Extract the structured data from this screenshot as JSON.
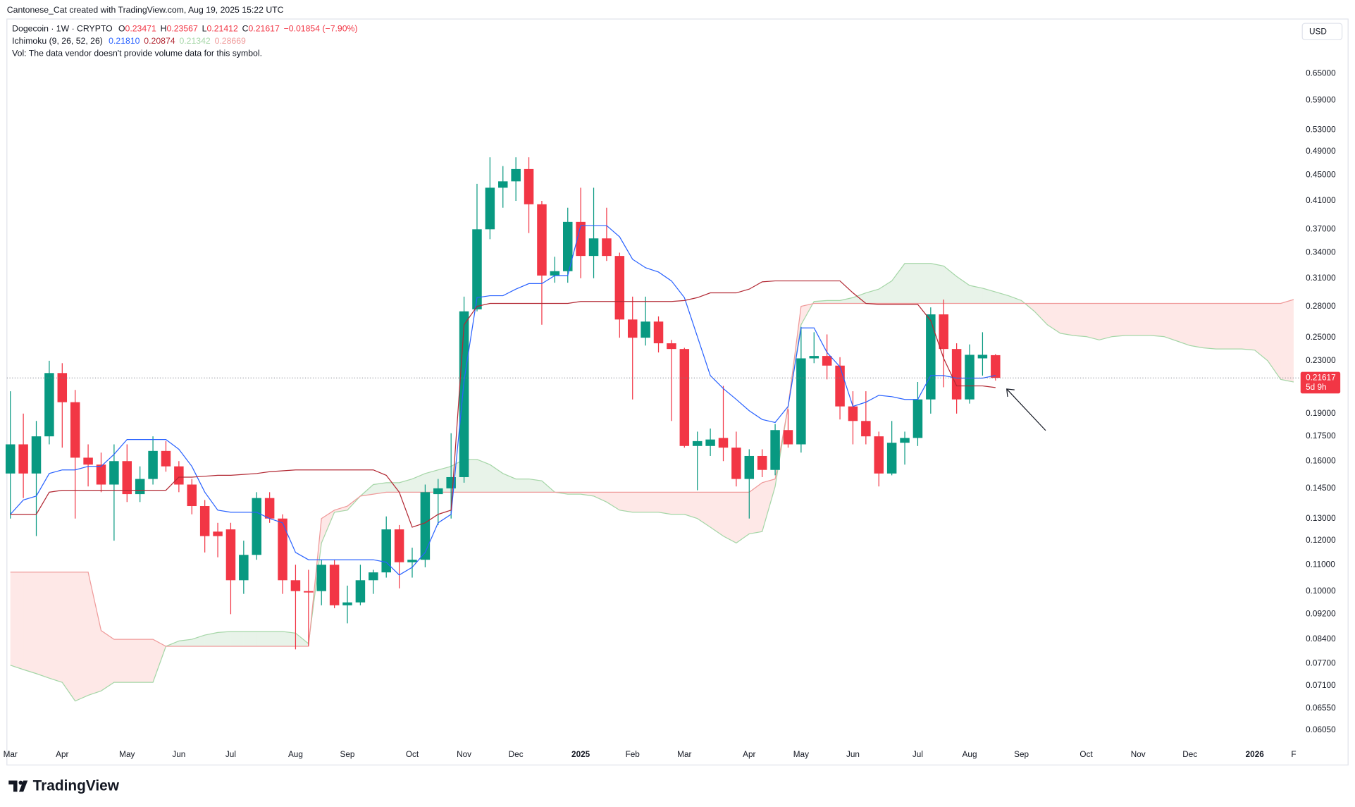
{
  "header": {
    "attribution": "Cantonese_Cat created with TradingView.com, Aug 19, 2025 15:22 UTC",
    "symbol": "Dogecoin · 1W · CRYPTO",
    "ohlc_labels": [
      "O",
      "H",
      "L",
      "C"
    ],
    "change": "−0.01854 (−7.90%)",
    "indicator": {
      "label": "Ichimoku (9, 26, 52, 26)",
      "values": [
        "0.21810",
        "0.20874",
        "0.21342",
        "0.28669"
      ]
    },
    "volume_note": "Vol: The data vendor doesn't provide volume data for this symbol."
  },
  "logo": "TradingView",
  "chart_data": {
    "type": "candlestick",
    "currency": "USD",
    "countdown": "5d 9h",
    "log_scale": true,
    "grid": false,
    "up_color": "#089981",
    "down_color": "#f23645",
    "categories": [
      "Mar",
      null,
      null,
      null,
      "Apr",
      null,
      null,
      null,
      null,
      "May",
      null,
      null,
      null,
      "Jun",
      null,
      null,
      null,
      "Jul",
      null,
      null,
      null,
      null,
      "Aug",
      null,
      null,
      null,
      "Sep",
      null,
      null,
      null,
      null,
      "Oct",
      null,
      null,
      null,
      "Nov",
      null,
      null,
      null,
      "Dec",
      null,
      null,
      null,
      null,
      "2025",
      null,
      null,
      null,
      "Feb",
      null,
      null,
      null,
      "Mar",
      null,
      null,
      null,
      null,
      "Apr",
      null,
      null,
      null,
      "May",
      null,
      null,
      null,
      "Jun",
      null,
      null,
      null,
      null,
      "Jul",
      null,
      null,
      null,
      "Aug",
      null,
      null,
      null,
      "Sep",
      null,
      null,
      null,
      null,
      "Oct",
      null,
      null,
      null,
      "Nov",
      null,
      null,
      null,
      "Dec",
      null,
      null,
      null,
      null,
      "2026",
      null,
      null,
      "F"
    ],
    "open": [
      0.153,
      0.17,
      0.153,
      0.175,
      0.22,
      0.198,
      0.162,
      0.158,
      0.147,
      0.16,
      0.142,
      0.15,
      0.166,
      0.157,
      0.147,
      0.136,
      0.124,
      0.125,
      0.104,
      0.114,
      0.14,
      0.13,
      0.104,
      0.1,
      0.1,
      0.11,
      0.095,
      0.096,
      0.104,
      0.107,
      0.125,
      0.111,
      0.112,
      0.142,
      0.145,
      0.151,
      0.277,
      0.37,
      0.43,
      0.44,
      0.46,
      0.405,
      0.313,
      0.318,
      0.38,
      0.336,
      0.358,
      0.336,
      0.267,
      0.25,
      0.265,
      0.245,
      0.24,
      0.169,
      0.169,
      0.174,
      0.168,
      0.15,
      0.163,
      0.155,
      0.179,
      0.17,
      0.232,
      0.234,
      0.226,
      0.195,
      0.185,
      0.175,
      0.153,
      0.171,
      0.174,
      0.2,
      0.272,
      0.24,
      0.2,
      0.232,
      0.23471,
      null,
      null,
      null,
      null,
      null,
      null,
      null,
      null,
      null,
      null,
      null,
      null,
      null,
      null,
      null,
      null,
      null,
      null,
      null,
      null,
      null,
      null,
      null
    ],
    "high": [
      0.206,
      0.19,
      0.185,
      0.23,
      0.228,
      0.207,
      0.17,
      0.165,
      0.17,
      0.17,
      0.157,
      0.175,
      0.172,
      0.16,
      0.15,
      0.139,
      0.128,
      0.128,
      0.12,
      0.143,
      0.143,
      0.132,
      0.11,
      0.108,
      0.112,
      0.112,
      0.102,
      0.11,
      0.108,
      0.131,
      0.127,
      0.117,
      0.147,
      0.15,
      0.177,
      0.29,
      0.436,
      0.48,
      0.465,
      0.48,
      0.48,
      0.41,
      0.335,
      0.4,
      0.43,
      0.43,
      0.4,
      0.34,
      0.29,
      0.29,
      0.27,
      0.248,
      0.241,
      0.178,
      0.18,
      0.21,
      0.178,
      0.167,
      0.167,
      0.183,
      0.193,
      0.26,
      0.255,
      0.253,
      0.233,
      0.206,
      0.206,
      0.178,
      0.185,
      0.178,
      0.213,
      0.279,
      0.287,
      0.245,
      0.244,
      0.255,
      0.23567,
      null,
      null,
      null,
      null,
      null,
      null,
      null,
      null,
      null,
      null,
      null,
      null,
      null,
      null,
      null,
      null,
      null,
      null,
      null,
      null,
      null,
      null,
      null
    ],
    "low": [
      0.13,
      0.14,
      0.122,
      0.17,
      0.168,
      0.13,
      0.146,
      0.143,
      0.12,
      0.138,
      0.138,
      0.147,
      0.154,
      0.143,
      0.132,
      0.115,
      0.113,
      0.092,
      0.099,
      0.112,
      0.128,
      0.099,
      0.081,
      0.082,
      0.095,
      0.094,
      0.089,
      0.095,
      0.099,
      0.105,
      0.101,
      0.105,
      0.109,
      0.127,
      0.13,
      0.148,
      0.275,
      0.357,
      0.4,
      0.41,
      0.365,
      0.262,
      0.305,
      0.305,
      0.31,
      0.31,
      0.33,
      0.25,
      0.2,
      0.243,
      0.237,
      0.185,
      0.168,
      0.144,
      0.163,
      0.16,
      0.146,
      0.13,
      0.151,
      0.152,
      0.168,
      0.165,
      0.228,
      0.215,
      0.186,
      0.17,
      0.17,
      0.146,
      0.152,
      0.158,
      0.169,
      0.19,
      0.209,
      0.19,
      0.197,
      0.218,
      0.21412,
      null,
      null,
      null,
      null,
      null,
      null,
      null,
      null,
      null,
      null,
      null,
      null,
      null,
      null,
      null,
      null,
      null,
      null,
      null,
      null,
      null,
      null,
      null
    ],
    "close": [
      0.17,
      0.153,
      0.175,
      0.22,
      0.198,
      0.162,
      0.158,
      0.147,
      0.16,
      0.142,
      0.15,
      0.166,
      0.157,
      0.147,
      0.136,
      0.122,
      0.122,
      0.104,
      0.114,
      0.14,
      0.13,
      0.104,
      0.1,
      0.0995,
      0.11,
      0.095,
      0.096,
      0.104,
      0.107,
      0.125,
      0.111,
      0.112,
      0.143,
      0.145,
      0.151,
      0.275,
      0.37,
      0.43,
      0.44,
      0.46,
      0.405,
      0.313,
      0.318,
      0.38,
      0.336,
      0.358,
      0.336,
      0.267,
      0.25,
      0.265,
      0.245,
      0.24,
      0.169,
      0.172,
      0.173,
      0.168,
      0.15,
      0.163,
      0.155,
      0.179,
      0.17,
      0.232,
      0.234,
      0.226,
      0.195,
      0.185,
      0.175,
      0.153,
      0.171,
      0.174,
      0.2,
      0.272,
      0.24,
      0.2,
      0.235,
      0.235,
      0.21617,
      null,
      null,
      null,
      null,
      null,
      null,
      null,
      null,
      null,
      null,
      null,
      null,
      null,
      null,
      null,
      null,
      null,
      null,
      null,
      null,
      null,
      null,
      null
    ],
    "ylim": [
      0.0573,
      0.7914
    ],
    "yticks": [
      {
        "value": 0.65,
        "label": "0.65000"
      },
      {
        "value": 0.59,
        "label": "0.59000"
      },
      {
        "value": 0.53,
        "label": "0.53000"
      },
      {
        "value": 0.49,
        "label": "0.49000"
      },
      {
        "value": 0.45,
        "label": "0.45000"
      },
      {
        "value": 0.41,
        "label": "0.41000"
      },
      {
        "value": 0.37,
        "label": "0.37000"
      },
      {
        "value": 0.34,
        "label": "0.34000"
      },
      {
        "value": 0.31,
        "label": "0.31000"
      },
      {
        "value": 0.28,
        "label": "0.28000"
      },
      {
        "value": 0.25,
        "label": "0.25000"
      },
      {
        "value": 0.23,
        "label": "0.23000"
      },
      {
        "value": 0.19,
        "label": "0.19000"
      },
      {
        "value": 0.175,
        "label": "0.17500"
      },
      {
        "value": 0.16,
        "label": "0.16000"
      },
      {
        "value": 0.145,
        "label": "0.14500"
      },
      {
        "value": 0.13,
        "label": "0.13000"
      },
      {
        "value": 0.12,
        "label": "0.12000"
      },
      {
        "value": 0.11,
        "label": "0.11000"
      },
      {
        "value": 0.1,
        "label": "0.10000"
      },
      {
        "value": 0.092,
        "label": "0.09200"
      },
      {
        "value": 0.084,
        "label": "0.08400"
      },
      {
        "value": 0.077,
        "label": "0.07700"
      },
      {
        "value": 0.071,
        "label": "0.07100"
      },
      {
        "value": 0.0655,
        "label": "0.06550"
      },
      {
        "value": 0.0605,
        "label": "0.06050"
      }
    ],
    "ichimoku": {
      "tenkan": {
        "color": "#2962ff",
        "values": [
          0.132,
          0.139,
          0.141,
          0.153,
          0.155,
          0.155,
          0.157,
          0.157,
          0.164,
          0.173,
          0.173,
          0.173,
          0.173,
          0.167,
          0.157,
          0.143,
          0.134,
          0.133,
          0.133,
          0.133,
          0.13,
          0.128,
          0.115,
          0.112,
          0.112,
          0.112,
          0.112,
          0.112,
          0.112,
          0.111,
          0.106,
          0.109,
          0.115,
          0.128,
          0.132,
          0.214,
          0.289,
          0.291,
          0.291,
          0.298,
          0.304,
          0.304,
          0.313,
          0.313,
          0.375,
          0.375,
          0.375,
          0.36,
          0.332,
          0.322,
          0.317,
          0.307,
          0.289,
          0.251,
          0.218,
          0.208,
          0.2,
          0.192,
          0.186,
          0.184,
          0.195,
          0.259,
          0.259,
          0.237,
          0.225,
          0.195,
          0.198,
          0.203,
          0.202,
          0.2,
          0.2,
          0.218,
          0.218,
          0.216,
          0.216,
          0.216,
          0.2181,
          null,
          null,
          null,
          null,
          null,
          null,
          null,
          null,
          null,
          null,
          null,
          null,
          null,
          null,
          null,
          null,
          null,
          null,
          null,
          null,
          null,
          null,
          null
        ]
      },
      "kijun": {
        "color": "#b22833",
        "values": [
          0.132,
          0.132,
          0.132,
          0.143,
          0.144,
          0.144,
          0.144,
          0.144,
          0.144,
          0.144,
          0.144,
          0.144,
          0.144,
          0.151,
          0.151,
          0.1515,
          0.152,
          0.152,
          0.1525,
          0.153,
          0.154,
          0.1545,
          0.155,
          0.155,
          0.155,
          0.155,
          0.155,
          0.155,
          0.155,
          0.152,
          0.143,
          0.126,
          0.128,
          0.132,
          0.134,
          0.262,
          0.28,
          0.283,
          0.283,
          0.283,
          0.283,
          0.283,
          0.283,
          0.283,
          0.285,
          0.285,
          0.285,
          0.285,
          0.285,
          0.285,
          0.285,
          0.285,
          0.286,
          0.289,
          0.294,
          0.294,
          0.294,
          0.298,
          0.306,
          0.307,
          0.307,
          0.307,
          0.307,
          0.307,
          0.307,
          0.294,
          0.283,
          0.282,
          0.282,
          0.282,
          0.282,
          0.266,
          0.232,
          0.21,
          0.21,
          0.21,
          0.20874,
          null,
          null,
          null,
          null,
          null,
          null,
          null,
          null,
          null,
          null,
          null,
          null,
          null,
          null,
          null,
          null,
          null,
          null,
          null,
          null,
          null,
          null,
          null
        ]
      },
      "span_a": {
        "color": "#a5d6a7",
        "fill": "rgba(67,160,71,0.12)",
        "values": [
          0.0765,
          0.0753,
          0.0742,
          0.073,
          0.0719,
          0.0672,
          0.0686,
          0.0697,
          0.0719,
          0.0719,
          0.0719,
          0.0719,
          0.0819,
          0.0835,
          0.084,
          0.0853,
          0.0861,
          0.0864,
          0.0864,
          0.0864,
          0.0864,
          0.0864,
          0.0859,
          0.0827,
          0.119,
          0.133,
          0.134,
          0.141,
          0.147,
          0.148,
          0.148,
          0.15,
          0.153,
          0.155,
          0.157,
          0.161,
          0.161,
          0.158,
          0.153,
          0.15,
          0.15,
          0.149,
          0.143,
          0.142,
          0.142,
          0.141,
          0.138,
          0.134,
          0.133,
          0.133,
          0.133,
          0.132,
          0.132,
          0.13,
          0.126,
          0.122,
          0.119,
          0.123,
          0.124,
          0.146,
          0.195,
          0.262,
          0.285,
          0.286,
          0.286,
          0.289,
          0.294,
          0.298,
          0.307,
          0.327,
          0.327,
          0.327,
          0.324,
          0.312,
          0.302,
          0.299,
          0.295,
          0.291,
          0.286,
          0.275,
          0.262,
          0.254,
          0.252,
          0.251,
          0.248,
          0.251,
          0.252,
          0.252,
          0.252,
          0.251,
          0.247,
          0.243,
          0.241,
          0.24,
          0.24,
          0.24,
          0.239,
          0.23,
          0.215,
          0.213
        ]
      },
      "span_b": {
        "color": "#ef9a9a",
        "fill": "rgba(244,67,54,0.12)",
        "values": [
          0.1071,
          0.1071,
          0.1071,
          0.1071,
          0.1071,
          0.1071,
          0.1071,
          0.0867,
          0.084,
          0.084,
          0.084,
          0.084,
          0.0819,
          0.0819,
          0.0819,
          0.0819,
          0.0819,
          0.0819,
          0.0819,
          0.0819,
          0.0819,
          0.0819,
          0.0819,
          0.0819,
          0.13,
          0.134,
          0.136,
          0.141,
          0.142,
          0.143,
          0.143,
          0.143,
          0.143,
          0.143,
          0.143,
          0.143,
          0.143,
          0.143,
          0.143,
          0.143,
          0.143,
          0.143,
          0.143,
          0.143,
          0.143,
          0.143,
          0.143,
          0.143,
          0.143,
          0.143,
          0.143,
          0.143,
          0.143,
          0.143,
          0.143,
          0.143,
          0.143,
          0.143,
          0.148,
          0.15,
          0.195,
          0.28,
          0.283,
          0.283,
          0.283,
          0.283,
          0.283,
          0.283,
          0.283,
          0.283,
          0.283,
          0.283,
          0.283,
          0.283,
          0.283,
          0.283,
          0.283,
          0.283,
          0.283,
          0.283,
          0.283,
          0.283,
          0.283,
          0.283,
          0.283,
          0.283,
          0.283,
          0.283,
          0.283,
          0.283,
          0.283,
          0.283,
          0.283,
          0.283,
          0.283,
          0.283,
          0.283,
          0.283,
          0.283,
          0.287
        ]
      }
    }
  }
}
